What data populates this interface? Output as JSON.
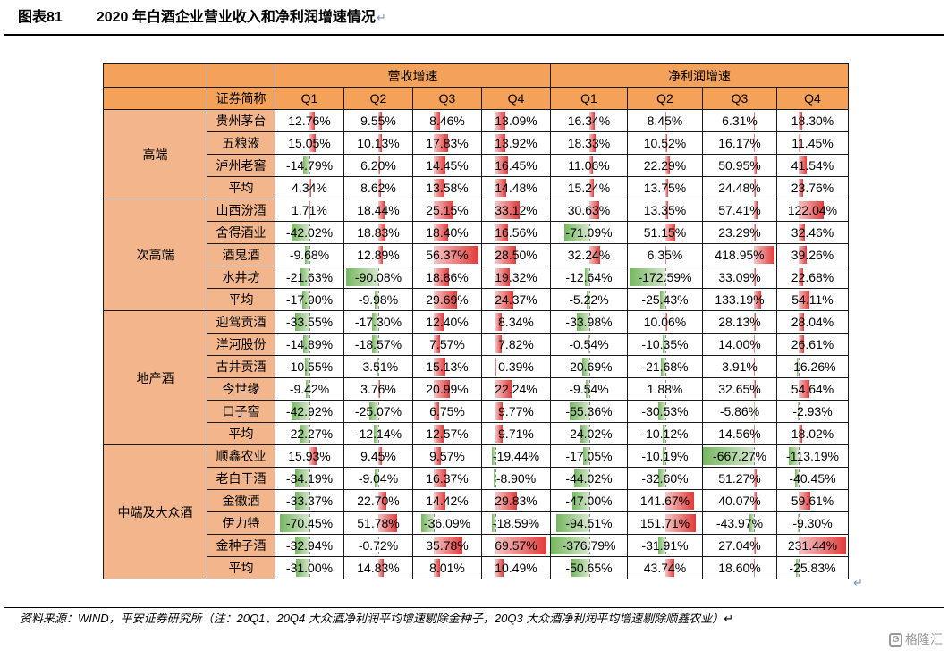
{
  "figure": {
    "number": "图表81",
    "title": "2020 年白酒企业营业收入和净利润增速情况",
    "return_mark": "↵"
  },
  "table": {
    "group_headers": [
      "营收增速",
      "净利润增速"
    ],
    "name_header": "证券简称",
    "quarters": [
      "Q1",
      "Q2",
      "Q3",
      "Q4",
      "Q1",
      "Q2",
      "Q3",
      "Q4"
    ],
    "categories": [
      {
        "name": "高端",
        "rows": [
          {
            "name": "贵州茅台",
            "cells": [
              "12.76%",
              "9.55%",
              "8.46%",
              "13.09%",
              "16.34%",
              "8.45%",
              "6.31%",
              "18.30%"
            ]
          },
          {
            "name": "五粮液",
            "cells": [
              "15.05%",
              "10.13%",
              "17.83%",
              "13.92%",
              "18.33%",
              "10.52%",
              "16.17%",
              "11.45%"
            ]
          },
          {
            "name": "泸州老窖",
            "cells": [
              "-14.79%",
              "6.20%",
              "14.45%",
              "16.45%",
              "11.06%",
              "22.29%",
              "50.95%",
              "41.54%"
            ]
          },
          {
            "name": "平均",
            "cells": [
              "4.34%",
              "8.62%",
              "13.58%",
              "14.48%",
              "15.24%",
              "13.75%",
              "24.48%",
              "23.76%"
            ]
          }
        ]
      },
      {
        "name": "次高端",
        "rows": [
          {
            "name": "山西汾酒",
            "cells": [
              "1.71%",
              "18.44%",
              "25.15%",
              "33.12%",
              "30.63%",
              "13.35%",
              "57.41%",
              "122.04%"
            ]
          },
          {
            "name": "舍得酒业",
            "cells": [
              "-42.02%",
              "18.83%",
              "18.40%",
              "16.56%",
              "-71.09%",
              "51.15%",
              "23.29%",
              "32.46%"
            ]
          },
          {
            "name": "酒鬼酒",
            "cells": [
              "-9.68%",
              "12.89%",
              "56.37%",
              "28.50%",
              "32.24%",
              "6.35%",
              "418.95%",
              "39.26%"
            ]
          },
          {
            "name": "水井坊",
            "cells": [
              "-21.63%",
              "-90.08%",
              "18.86%",
              "19.32%",
              "-12.64%",
              "-172.59%",
              "33.09%",
              "22.68%"
            ]
          },
          {
            "name": "平均",
            "cells": [
              "-17.90%",
              "-9.98%",
              "29.69%",
              "24.37%",
              "-5.22%",
              "-25.43%",
              "133.19%",
              "54.11%"
            ]
          }
        ]
      },
      {
        "name": "地产酒",
        "rows": [
          {
            "name": "迎驾贡酒",
            "cells": [
              "-33.55%",
              "-17.30%",
              "12.40%",
              "8.34%",
              "-33.98%",
              "10.06%",
              "28.13%",
              "28.04%"
            ]
          },
          {
            "name": "洋河股份",
            "cells": [
              "-14.89%",
              "-18.57%",
              "7.57%",
              "7.82%",
              "-0.54%",
              "-10.35%",
              "14.00%",
              "26.61%"
            ]
          },
          {
            "name": "古井贡酒",
            "cells": [
              "-10.55%",
              "-3.51%",
              "15.13%",
              "0.39%",
              "-20.69%",
              "-21.68%",
              "3.91%",
              "-16.26%"
            ]
          },
          {
            "name": "今世缘",
            "cells": [
              "-9.42%",
              "3.76%",
              "20.99%",
              "22.24%",
              "-9.54%",
              "1.88%",
              "32.65%",
              "54.64%"
            ]
          },
          {
            "name": "口子窖",
            "cells": [
              "-42.92%",
              "-25.07%",
              "6.75%",
              "9.77%",
              "-55.36%",
              "-30.53%",
              "-5.86%",
              "-2.93%"
            ]
          },
          {
            "name": "平均",
            "cells": [
              "-22.27%",
              "-12.14%",
              "12.57%",
              "9.71%",
              "-24.02%",
              "-10.12%",
              "14.56%",
              "18.02%"
            ]
          }
        ]
      },
      {
        "name": "中端及大众酒",
        "rows": [
          {
            "name": "顺鑫农业",
            "cells": [
              "15.93%",
              "9.45%",
              "9.57%",
              "-19.44%",
              "-17.05%",
              "-10.19%",
              "-667.27%",
              "-113.19%"
            ]
          },
          {
            "name": "老白干酒",
            "cells": [
              "-34.19%",
              "-9.04%",
              "16.37%",
              "-8.90%",
              "-44.02%",
              "-32.60%",
              "51.27%",
              "-40.45%"
            ]
          },
          {
            "name": "金徽酒",
            "cells": [
              "-33.37%",
              "22.70%",
              "14.42%",
              "29.83%",
              "-47.00%",
              "141.67%",
              "40.07%",
              "59.61%"
            ]
          },
          {
            "name": "伊力特",
            "cells": [
              "-70.45%",
              "51.78%",
              "-36.09%",
              "-18.59%",
              "-94.51%",
              "151.71%",
              "-43.97%",
              "-9.30%"
            ]
          },
          {
            "name": "金种子酒",
            "cells": [
              "-32.94%",
              "-0.72%",
              "35.78%",
              "69.57%",
              "-376.79%",
              "-31.91%",
              "27.04%",
              "231.44%"
            ]
          },
          {
            "name": "平均",
            "cells": [
              "-31.00%",
              "14.83%",
              "8.01%",
              "10.49%",
              "-50.65%",
              "43.74%",
              "18.60%",
              "-25.83%"
            ]
          }
        ]
      }
    ]
  },
  "colors": {
    "header": "#f4a25a",
    "category": "#f3b68c",
    "positive_bar": "#e23a3a",
    "negative_bar": "#75b75f"
  },
  "source_note": "资料来源：WIND，平安证券研究所（注：20Q1、20Q4 大众酒净利润平均增速剔除金种子，20Q3 大众酒净利润平均增速剔除顺鑫农业）↵",
  "tail_mark": "↵",
  "watermark": {
    "logo": "G",
    "text": "格隆汇"
  }
}
